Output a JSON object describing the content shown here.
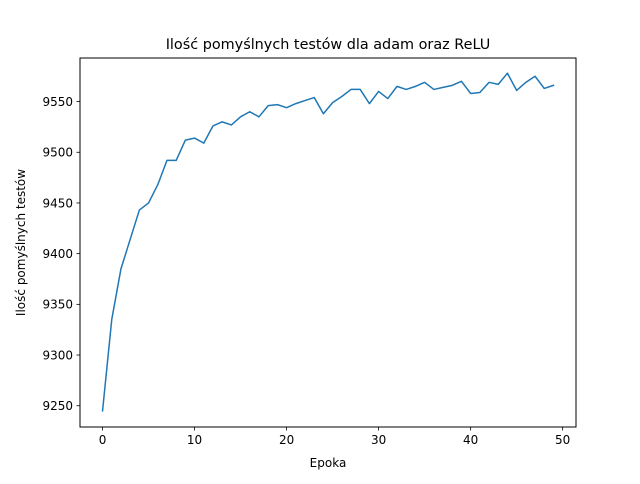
{
  "chart_data": {
    "type": "line",
    "title": "Ilość pomyślnych testów dla adam oraz ReLU",
    "xlabel": "Epoka",
    "ylabel": "Ilość pomyślnych testów",
    "xlim": [
      -2.45,
      51.45
    ],
    "ylim": [
      9229,
      9593
    ],
    "xticks": [
      0,
      10,
      20,
      30,
      40,
      50
    ],
    "xtick_labels": [
      "0",
      "10",
      "20",
      "30",
      "40",
      "50"
    ],
    "yticks": [
      9250,
      9300,
      9350,
      9400,
      9450,
      9500,
      9550
    ],
    "ytick_labels": [
      "9250",
      "9300",
      "9350",
      "9400",
      "9450",
      "9500",
      "9550"
    ],
    "grid": false,
    "legend": null,
    "series": [
      {
        "color": "#1f77b4",
        "x": [
          0,
          1,
          2,
          3,
          4,
          5,
          6,
          7,
          8,
          9,
          10,
          11,
          12,
          13,
          14,
          15,
          16,
          17,
          18,
          19,
          20,
          21,
          22,
          23,
          24,
          25,
          26,
          27,
          28,
          29,
          30,
          31,
          32,
          33,
          34,
          35,
          36,
          37,
          38,
          39,
          40,
          41,
          42,
          43,
          44,
          45,
          46,
          47,
          48,
          49
        ],
        "y": [
          9245,
          9335,
          9385,
          9414,
          9443,
          9450,
          9468,
          9492,
          9492,
          9512,
          9514,
          9509,
          9526,
          9530,
          9527,
          9535,
          9540,
          9535,
          9546,
          9547,
          9544,
          9548,
          9551,
          9554,
          9538,
          9549,
          9555,
          9562,
          9562,
          9548,
          9560,
          9553,
          9565,
          9562,
          9565,
          9569,
          9562,
          9564,
          9566,
          9570,
          9558,
          9559,
          9569,
          9567,
          9578,
          9561,
          9569,
          9575,
          9563,
          9566
        ]
      }
    ]
  }
}
